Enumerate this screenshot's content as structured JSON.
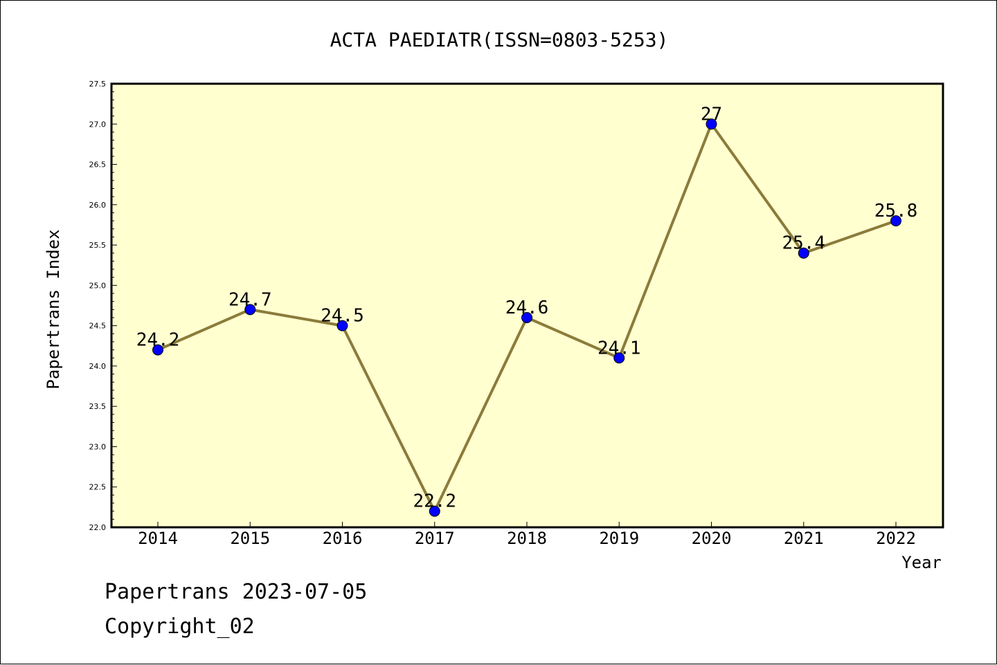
{
  "chart_data": {
    "type": "line",
    "title": "ACTA PAEDIATR(ISSN=0803-5253)",
    "xlabel": "Year",
    "ylabel": "Papertrans Index",
    "categories": [
      "2014",
      "2015",
      "2016",
      "2017",
      "2018",
      "2019",
      "2020",
      "2021",
      "2022"
    ],
    "values": [
      24.2,
      24.7,
      24.5,
      22.2,
      24.6,
      24.1,
      27,
      25.4,
      25.8
    ],
    "data_labels": [
      "24.2",
      "24.7",
      "24.5",
      "22.2",
      "24.6",
      "24.1",
      "27",
      "25.4",
      "25.8"
    ],
    "ylim": [
      22.0,
      27.5
    ],
    "yticks": [
      "22.0",
      "22.5",
      "23.0",
      "23.5",
      "24.0",
      "24.5",
      "25.0",
      "25.5",
      "26.0",
      "26.5",
      "27.0",
      "27.5"
    ],
    "grid": false,
    "colors": {
      "plot_background": "#ffffd0",
      "line": "#8b7b3a",
      "marker": "#0000ff"
    }
  },
  "footer": {
    "line1": "Papertrans 2023-07-05",
    "line2": "Copyright_02"
  }
}
